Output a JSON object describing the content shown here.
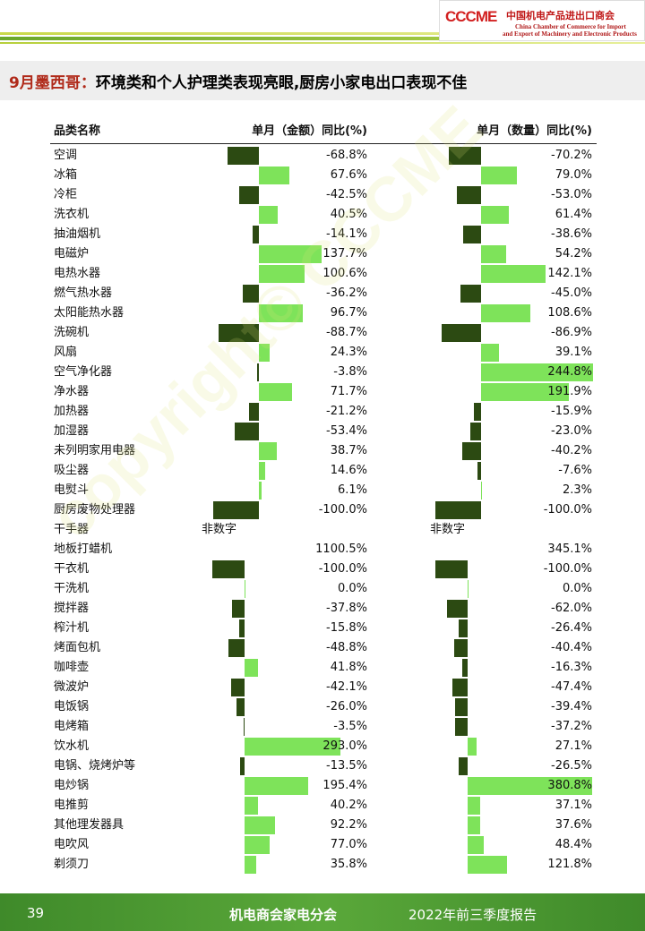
{
  "header": {
    "logo_mark": "CCCME",
    "org_cn": "中国机电产品进出口商会",
    "org_en_1": "China Chamber of Commerce for Import",
    "org_en_2": "and Export of Machinery and Electronic Products",
    "title_lead": "9月墨西哥：",
    "title": "环境类和个人护理类表现亮眼,厨房小家电出口表现不佳"
  },
  "table": {
    "columns": [
      "品类名称",
      "单月（金额）同比(%)",
      "单月（数量）同比(%)"
    ],
    "rows": [
      {
        "name": "空调",
        "amount": -68.8,
        "amount_label": "-68.8%",
        "quantity": -70.2,
        "quantity_label": "-70.2%"
      },
      {
        "name": "冰箱",
        "amount": 67.6,
        "amount_label": "67.6%",
        "quantity": 79.0,
        "quantity_label": "79.0%"
      },
      {
        "name": "冷柜",
        "amount": -42.5,
        "amount_label": "-42.5%",
        "quantity": -53.0,
        "quantity_label": "-53.0%"
      },
      {
        "name": "洗衣机",
        "amount": 40.5,
        "amount_label": "40.5%",
        "quantity": 61.4,
        "quantity_label": "61.4%"
      },
      {
        "name": "抽油烟机",
        "amount": -14.1,
        "amount_label": "-14.1%",
        "quantity": -38.6,
        "quantity_label": "-38.6%"
      },
      {
        "name": "电磁炉",
        "amount": 137.7,
        "amount_label": "137.7%",
        "quantity": 54.2,
        "quantity_label": "54.2%"
      },
      {
        "name": "电热水器",
        "amount": 100.6,
        "amount_label": "100.6%",
        "quantity": 142.1,
        "quantity_label": "142.1%"
      },
      {
        "name": "燃气热水器",
        "amount": -36.2,
        "amount_label": "-36.2%",
        "quantity": -45.0,
        "quantity_label": "-45.0%"
      },
      {
        "name": "太阳能热水器",
        "amount": 96.7,
        "amount_label": "96.7%",
        "quantity": 108.6,
        "quantity_label": "108.6%"
      },
      {
        "name": "洗碗机",
        "amount": -88.7,
        "amount_label": "-88.7%",
        "quantity": -86.9,
        "quantity_label": "-86.9%"
      },
      {
        "name": "风扇",
        "amount": 24.3,
        "amount_label": "24.3%",
        "quantity": 39.1,
        "quantity_label": "39.1%"
      },
      {
        "name": "空气净化器",
        "amount": -3.8,
        "amount_label": "-3.8%",
        "quantity": 244.8,
        "quantity_label": "244.8%"
      },
      {
        "name": "净水器",
        "amount": 71.7,
        "amount_label": "71.7%",
        "quantity": 191.9,
        "quantity_label": "191.9%"
      },
      {
        "name": "加热器",
        "amount": -21.2,
        "amount_label": "-21.2%",
        "quantity": -15.9,
        "quantity_label": "-15.9%"
      },
      {
        "name": "加湿器",
        "amount": -53.4,
        "amount_label": "-53.4%",
        "quantity": -23.0,
        "quantity_label": "-23.0%"
      },
      {
        "name": "未列明家用电器",
        "amount": 38.7,
        "amount_label": "38.7%",
        "quantity": -40.2,
        "quantity_label": "-40.2%"
      },
      {
        "name": "吸尘器",
        "amount": 14.6,
        "amount_label": "14.6%",
        "quantity": -7.6,
        "quantity_label": "-7.6%"
      },
      {
        "name": "电熨斗",
        "amount": 6.1,
        "amount_label": "6.1%",
        "quantity": 2.3,
        "quantity_label": "2.3%"
      },
      {
        "name": "厨房废物处理器",
        "amount": -100.0,
        "amount_label": "-100.0%",
        "quantity": -100.0,
        "quantity_label": "-100.0%"
      },
      {
        "name": "干手器",
        "amount": null,
        "amount_label": "非数字",
        "quantity": null,
        "quantity_label": "非数字"
      },
      {
        "name": "地板打蜡机",
        "amount": 1100.5,
        "amount_label": "1100.5%",
        "quantity": 345.1,
        "quantity_label": "345.1%"
      },
      {
        "name": "干衣机",
        "amount": -100.0,
        "amount_label": "-100.0%",
        "quantity": -100.0,
        "quantity_label": "-100.0%"
      },
      {
        "name": "干洗机",
        "amount": 0.0,
        "amount_label": "0.0%",
        "quantity": 0.0,
        "quantity_label": "0.0%"
      },
      {
        "name": "搅拌器",
        "amount": -37.8,
        "amount_label": "-37.8%",
        "quantity": -62.0,
        "quantity_label": "-62.0%"
      },
      {
        "name": "榨汁机",
        "amount": -15.8,
        "amount_label": "-15.8%",
        "quantity": -26.4,
        "quantity_label": "-26.4%"
      },
      {
        "name": "烤面包机",
        "amount": -48.8,
        "amount_label": "-48.8%",
        "quantity": -40.4,
        "quantity_label": "-40.4%"
      },
      {
        "name": "咖啡壶",
        "amount": 41.8,
        "amount_label": "41.8%",
        "quantity": -16.3,
        "quantity_label": "-16.3%"
      },
      {
        "name": "微波炉",
        "amount": -42.1,
        "amount_label": "-42.1%",
        "quantity": -47.4,
        "quantity_label": "-47.4%"
      },
      {
        "name": "电饭锅",
        "amount": -26.0,
        "amount_label": "-26.0%",
        "quantity": -39.4,
        "quantity_label": "-39.4%"
      },
      {
        "name": "电烤箱",
        "amount": -3.5,
        "amount_label": "-3.5%",
        "quantity": -37.2,
        "quantity_label": "-37.2%"
      },
      {
        "name": "饮水机",
        "amount": 293.0,
        "amount_label": "293.0%",
        "quantity": 27.1,
        "quantity_label": "27.1%"
      },
      {
        "name": "电锅、烧烤炉等",
        "amount": -13.5,
        "amount_label": "-13.5%",
        "quantity": -26.5,
        "quantity_label": "-26.5%"
      },
      {
        "name": "电炒锅",
        "amount": 195.4,
        "amount_label": "195.4%",
        "quantity": 380.8,
        "quantity_label": "380.8%"
      },
      {
        "name": "电推剪",
        "amount": 40.2,
        "amount_label": "40.2%",
        "quantity": 37.1,
        "quantity_label": "37.1%"
      },
      {
        "name": "其他理发器具",
        "amount": 92.2,
        "amount_label": "92.2%",
        "quantity": 37.6,
        "quantity_label": "37.6%"
      },
      {
        "name": "电吹风",
        "amount": 77.0,
        "amount_label": "77.0%",
        "quantity": 48.4,
        "quantity_label": "48.4%"
      },
      {
        "name": "剃须刀",
        "amount": 35.8,
        "amount_label": "35.8%",
        "quantity": 121.8,
        "quantity_label": "121.8%"
      }
    ]
  },
  "watermark": "copyright© CCCME",
  "footer": {
    "page": "39",
    "org": "机电商会家电分会",
    "report": "2022年前三季度报告"
  }
}
